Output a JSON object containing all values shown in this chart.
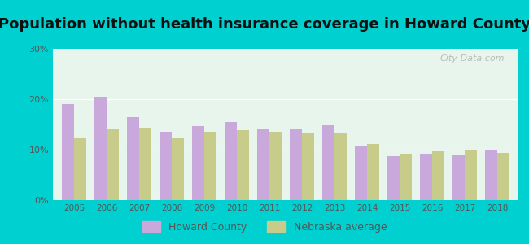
{
  "title": "Population without health insurance coverage in Howard County",
  "years": [
    2005,
    2006,
    2007,
    2008,
    2009,
    2010,
    2011,
    2012,
    2013,
    2014,
    2015,
    2016,
    2017,
    2018
  ],
  "howard_county": [
    19.0,
    20.5,
    16.5,
    13.5,
    14.7,
    15.5,
    14.0,
    14.2,
    14.8,
    10.7,
    8.7,
    9.2,
    8.9,
    9.8
  ],
  "nebraska_avg": [
    12.3,
    14.0,
    14.3,
    12.3,
    13.5,
    13.8,
    13.5,
    13.2,
    13.2,
    11.2,
    9.2,
    9.7,
    9.8,
    9.3
  ],
  "howard_color": "#c9a8dc",
  "nebraska_color": "#c8cc8a",
  "bg_outer": "#00d0d0",
  "bg_plot": "#e8f5ec",
  "title_fontsize": 13,
  "ylim": [
    0,
    30
  ],
  "yticks": [
    0,
    10,
    20,
    30
  ],
  "ytick_labels": [
    "0%",
    "10%",
    "20%",
    "30%"
  ],
  "legend_howard": "Howard County",
  "legend_nebraska": "Nebraska average",
  "watermark": "City-Data.com",
  "tick_color": "#555555",
  "grid_color": "#ffffff"
}
